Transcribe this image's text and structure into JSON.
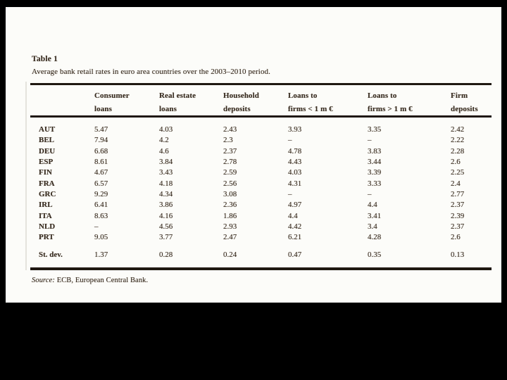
{
  "panel": {
    "table_label": "Table 1",
    "caption": "Average bank retail rates in euro area countries over the 2003–2010 period.",
    "source_prefix": "Source:",
    "source_text": " ECB, European Central Bank."
  },
  "table": {
    "column_headers": [
      "Consumer\nloans",
      "Real estate\nloans",
      "Household\ndeposits",
      "Loans to\nfirms < 1 m €",
      "Loans to\nfirms > 1 m €",
      "Firm\ndeposits"
    ],
    "rows": [
      {
        "label": "AUT",
        "values": [
          "5.47",
          "4.03",
          "2.43",
          "3.93",
          "3.35",
          "2.42"
        ]
      },
      {
        "label": "BEL",
        "values": [
          "7.94",
          "4.2",
          "2.3",
          "–",
          "–",
          "2.22"
        ]
      },
      {
        "label": "DEU",
        "values": [
          "6.68",
          "4.6",
          "2.37",
          "4.78",
          "3.83",
          "2.28"
        ]
      },
      {
        "label": "ESP",
        "values": [
          "8.61",
          "3.84",
          "2.78",
          "4.43",
          "3.44",
          "2.6"
        ]
      },
      {
        "label": "FIN",
        "values": [
          "4.67",
          "3.43",
          "2.59",
          "4.03",
          "3.39",
          "2.25"
        ]
      },
      {
        "label": "FRA",
        "values": [
          "6.57",
          "4.18",
          "2.56",
          "4.31",
          "3.33",
          "2.4"
        ]
      },
      {
        "label": "GRC",
        "values": [
          "9.29",
          "4.34",
          "3.08",
          "–",
          "–",
          "2.77"
        ]
      },
      {
        "label": "IRL",
        "values": [
          "6.41",
          "3.86",
          "2.36",
          "4.97",
          "4.4",
          "2.37"
        ]
      },
      {
        "label": "ITA",
        "values": [
          "8.63",
          "4.16",
          "1.86",
          "4.4",
          "3.41",
          "2.39"
        ]
      },
      {
        "label": "NLD",
        "values": [
          "–",
          "4.56",
          "2.93",
          "4.42",
          "3.4",
          "2.37"
        ]
      },
      {
        "label": "PRT",
        "values": [
          "9.05",
          "3.77",
          "2.47",
          "6.21",
          "4.28",
          "2.6"
        ]
      }
    ],
    "summary_row": {
      "label": "St. dev.",
      "values": [
        "1.37",
        "0.28",
        "0.24",
        "0.47",
        "0.35",
        "0.13"
      ]
    }
  },
  "colors": {
    "page_bg": "#000000",
    "panel_bg": "#fcfcf9",
    "ink": "#362b20",
    "rule": "#1f1811"
  }
}
